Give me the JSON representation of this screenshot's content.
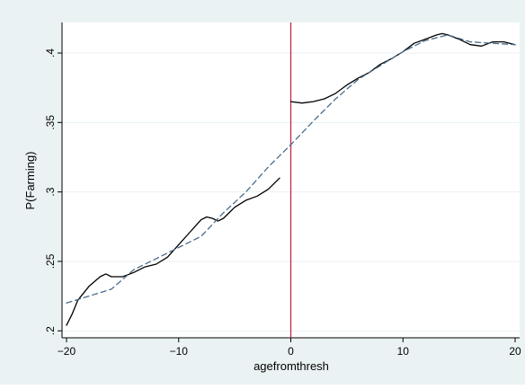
{
  "chart_data": {
    "type": "line",
    "xlabel": "agefromthresh",
    "ylabel": "P(Farming)",
    "xlim": [
      -20.4,
      20.4
    ],
    "ylim": [
      0.195,
      0.422
    ],
    "x_ticks": [
      -20,
      -10,
      0,
      10,
      20
    ],
    "x_tick_labels": [
      "−20",
      "−10",
      "0",
      "10",
      "20"
    ],
    "y_ticks": [
      0.2,
      0.25,
      0.3,
      0.35,
      0.4
    ],
    "y_tick_labels": [
      ".2",
      ".25",
      ".3",
      ".35",
      ".4"
    ],
    "grid": true,
    "threshold_x": 0,
    "colors": {
      "outer_background": "#eaf2f3",
      "plot_background": "#ffffff",
      "grid": "#eaf2f3",
      "solid_line": "#000000",
      "dashed_line": "#4a6b8a",
      "threshold_line": "#c0284a"
    },
    "series": [
      {
        "style": "solid",
        "x": [
          -20,
          -19.5,
          -19,
          -18,
          -17,
          -16.5,
          -16,
          -15.5,
          -15,
          -14,
          -13,
          -12,
          -11,
          -10,
          -9,
          -8,
          -7.5,
          -7,
          -6.5,
          -6,
          -5,
          -4,
          -3,
          -2,
          -1
        ],
        "y": [
          0.204,
          0.212,
          0.222,
          0.232,
          0.239,
          0.241,
          0.239,
          0.239,
          0.239,
          0.242,
          0.246,
          0.248,
          0.253,
          0.262,
          0.271,
          0.28,
          0.282,
          0.281,
          0.279,
          0.281,
          0.289,
          0.294,
          0.297,
          0.302,
          0.31
        ]
      },
      {
        "style": "solid",
        "x": [
          0,
          1,
          2,
          3,
          4,
          5,
          6,
          7,
          8,
          9,
          10,
          11,
          12,
          13,
          13.5,
          14,
          15,
          16,
          17,
          18,
          19,
          20
        ],
        "y": [
          0.365,
          0.364,
          0.365,
          0.367,
          0.371,
          0.377,
          0.382,
          0.386,
          0.392,
          0.396,
          0.401,
          0.407,
          0.41,
          0.413,
          0.414,
          0.413,
          0.41,
          0.406,
          0.405,
          0.408,
          0.408,
          0.406
        ]
      },
      {
        "style": "dashed",
        "x": [
          -20,
          -18,
          -16,
          -14,
          -12,
          -10,
          -8,
          -6,
          -4,
          -2,
          0,
          2,
          4,
          6,
          8,
          10,
          12,
          14,
          16,
          18,
          20
        ],
        "y": [
          0.22,
          0.225,
          0.23,
          0.244,
          0.252,
          0.26,
          0.268,
          0.285,
          0.3,
          0.318,
          0.334,
          0.351,
          0.367,
          0.381,
          0.391,
          0.401,
          0.409,
          0.413,
          0.408,
          0.407,
          0.406
        ]
      }
    ]
  }
}
